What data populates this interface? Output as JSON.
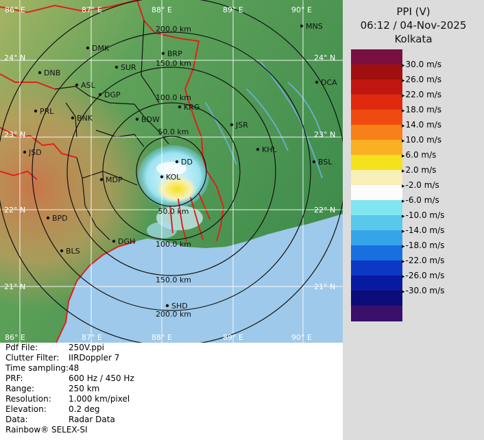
{
  "header": {
    "product": "PPI (V)",
    "datetime": "06:12 / 04-Nov-2025",
    "station": "Kolkata"
  },
  "colors": {
    "sea": "#9ec9ea",
    "land_low": "#4f9a55",
    "land_high": "#c8764a",
    "border": "#e0201a",
    "panel": "#dcdcdc"
  },
  "legend": [
    {
      "color": "#7a1040",
      "label": ""
    },
    {
      "color": "#a01010",
      "label": "30.0 m/s"
    },
    {
      "color": "#c01810",
      "label": "26.0 m/s"
    },
    {
      "color": "#e02a10",
      "label": "22.0 m/s"
    },
    {
      "color": "#f04a10",
      "label": "18.0 m/s"
    },
    {
      "color": "#f88018",
      "label": "14.0 m/s"
    },
    {
      "color": "#fab024",
      "label": "10.0 m/s"
    },
    {
      "color": "#f6e21c",
      "label": "6.0 m/s"
    },
    {
      "color": "#f8f0b8",
      "label": "2.0 m/s"
    },
    {
      "color": "#fcfcfc",
      "label": "-2.0 m/s"
    },
    {
      "color": "#80e6f0",
      "label": "-6.0 m/s"
    },
    {
      "color": "#58c8ec",
      "label": "-10.0 m/s"
    },
    {
      "color": "#36a4e8",
      "label": "-14.0 m/s"
    },
    {
      "color": "#1870e0",
      "label": "-18.0 m/s"
    },
    {
      "color": "#0c38c4",
      "label": "-22.0 m/s"
    },
    {
      "color": "#081aa0",
      "label": "-26.0 m/s"
    },
    {
      "color": "#0c0c78",
      "label": "-30.0 m/s"
    },
    {
      "color": "#3a106a",
      "label": ""
    }
  ],
  "info": [
    {
      "key": "Pdf File:",
      "value": "250V.ppi"
    },
    {
      "key": "Clutter Filter:",
      "value": "IIRDoppler 7"
    },
    {
      "key": "Time sampling:",
      "value": "48"
    },
    {
      "key": "PRF:",
      "value": "600 Hz / 450 Hz"
    },
    {
      "key": "Range:",
      "value": "250 km"
    },
    {
      "key": "Resolution:",
      "value": "1.000 km/pixel"
    },
    {
      "key": "Elevation:",
      "value": "0.2 deg"
    },
    {
      "key": "Data:",
      "value": "Radar Data"
    }
  ],
  "footer": "Rainbow® SELEX-SI",
  "map": {
    "lon_top": [
      "86° E",
      "87° E",
      "88° E",
      "89° E",
      "90° E"
    ],
    "lon_bottom": [
      "86° E",
      "87° E",
      "88° E",
      "89° E",
      "90° E"
    ],
    "lat_left": [
      "24° N",
      "23° N",
      "22° N",
      "21° N"
    ],
    "lat_right": [
      "24° N",
      "23° N",
      "22° N",
      "21° N"
    ],
    "range_rings": [
      "50.0 km",
      "100.0 km",
      "150.0 km",
      "200.0 km"
    ],
    "range_rings_south": [
      "50.0 km",
      "100.0 km",
      "150.0 km",
      "200.0 km"
    ],
    "stations": [
      {
        "name": "MNS"
      },
      {
        "name": "DMK"
      },
      {
        "name": "BRP"
      },
      {
        "name": "SUR"
      },
      {
        "name": "DNB"
      },
      {
        "name": "ASL"
      },
      {
        "name": "DGP"
      },
      {
        "name": "DCA"
      },
      {
        "name": "KRG"
      },
      {
        "name": "PRL"
      },
      {
        "name": "BNK"
      },
      {
        "name": "BDW"
      },
      {
        "name": "JSR"
      },
      {
        "name": "KHL"
      },
      {
        "name": "JSD"
      },
      {
        "name": "DD"
      },
      {
        "name": "BSL"
      },
      {
        "name": "KOL"
      },
      {
        "name": "MDP"
      },
      {
        "name": "BPD"
      },
      {
        "name": "DGH"
      },
      {
        "name": "BLS"
      },
      {
        "name": "SHD"
      }
    ]
  }
}
